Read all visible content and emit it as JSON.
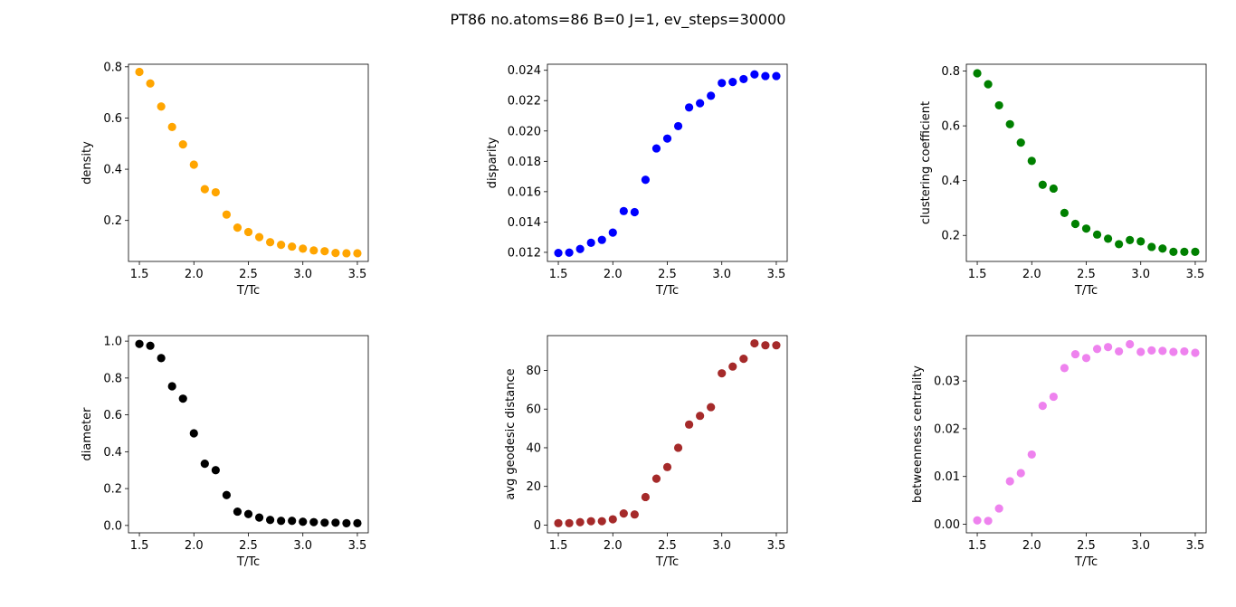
{
  "figure": {
    "title": "PT86 no.atoms=86  B=0 J=1, ev_steps=30000"
  },
  "chart_data": [
    {
      "type": "scatter",
      "xlabel": "T/Tc",
      "ylabel": "density",
      "color": "#ffa500",
      "xlim": [
        1.4,
        3.6
      ],
      "ylim": [
        0.04,
        0.81
      ],
      "xticks": [
        1.5,
        2.0,
        2.5,
        3.0,
        3.5
      ],
      "xtick_labels": [
        "1.5",
        "2.0",
        "2.5",
        "3.0",
        "3.5"
      ],
      "yticks": [
        0.2,
        0.4,
        0.6,
        0.8
      ],
      "ytick_labels": [
        "0.2",
        "0.4",
        "0.6",
        "0.8"
      ],
      "x": [
        1.5,
        1.6,
        1.7,
        1.8,
        1.9,
        2.0,
        2.1,
        2.2,
        2.3,
        2.4,
        2.5,
        2.6,
        2.7,
        2.8,
        2.9,
        3.0,
        3.1,
        3.2,
        3.3,
        3.4,
        3.5
      ],
      "y": [
        0.78,
        0.735,
        0.645,
        0.565,
        0.497,
        0.418,
        0.322,
        0.31,
        0.223,
        0.172,
        0.155,
        0.135,
        0.115,
        0.105,
        0.098,
        0.09,
        0.083,
        0.08,
        0.073,
        0.072,
        0.072
      ]
    },
    {
      "type": "scatter",
      "xlabel": "T/Tc",
      "ylabel": "disparity",
      "color": "#0000ff",
      "xlim": [
        1.4,
        3.6
      ],
      "ylim": [
        0.0114,
        0.0244
      ],
      "xticks": [
        1.5,
        2.0,
        2.5,
        3.0,
        3.5
      ],
      "xtick_labels": [
        "1.5",
        "2.0",
        "2.5",
        "3.0",
        "3.5"
      ],
      "yticks": [
        0.012,
        0.014,
        0.016,
        0.018,
        0.02,
        0.022,
        0.024
      ],
      "ytick_labels": [
        "0.012",
        "0.014",
        "0.016",
        "0.018",
        "0.020",
        "0.022",
        "0.024"
      ],
      "x": [
        1.5,
        1.6,
        1.7,
        1.8,
        1.9,
        2.0,
        2.1,
        2.2,
        2.3,
        2.4,
        2.5,
        2.6,
        2.7,
        2.8,
        2.9,
        3.0,
        3.1,
        3.2,
        3.3,
        3.4,
        3.5
      ],
      "y": [
        0.01196,
        0.01198,
        0.01222,
        0.01263,
        0.01282,
        0.0133,
        0.01472,
        0.01465,
        0.01678,
        0.01885,
        0.0195,
        0.02032,
        0.02155,
        0.02183,
        0.02232,
        0.02316,
        0.02323,
        0.02342,
        0.02373,
        0.02362,
        0.02362
      ]
    },
    {
      "type": "scatter",
      "xlabel": "T/Tc",
      "ylabel": "clustering coefficient",
      "color": "#008000",
      "xlim": [
        1.4,
        3.6
      ],
      "ylim": [
        0.105,
        0.825
      ],
      "xticks": [
        1.5,
        2.0,
        2.5,
        3.0,
        3.5
      ],
      "xtick_labels": [
        "1.5",
        "2.0",
        "2.5",
        "3.0",
        "3.5"
      ],
      "yticks": [
        0.2,
        0.4,
        0.6,
        0.8
      ],
      "ytick_labels": [
        "0.2",
        "0.4",
        "0.6",
        "0.8"
      ],
      "x": [
        1.5,
        1.6,
        1.7,
        1.8,
        1.9,
        2.0,
        2.1,
        2.2,
        2.3,
        2.4,
        2.5,
        2.6,
        2.7,
        2.8,
        2.9,
        3.0,
        3.1,
        3.2,
        3.3,
        3.4,
        3.5
      ],
      "y": [
        0.792,
        0.752,
        0.675,
        0.606,
        0.539,
        0.472,
        0.385,
        0.371,
        0.282,
        0.242,
        0.225,
        0.203,
        0.188,
        0.168,
        0.183,
        0.178,
        0.158,
        0.152,
        0.14,
        0.14,
        0.14
      ]
    },
    {
      "type": "scatter",
      "xlabel": "T/Tc",
      "ylabel": "diameter",
      "color": "#000000",
      "xlim": [
        1.4,
        3.6
      ],
      "ylim": [
        -0.04,
        1.03
      ],
      "xticks": [
        1.5,
        2.0,
        2.5,
        3.0,
        3.5
      ],
      "xtick_labels": [
        "1.5",
        "2.0",
        "2.5",
        "3.0",
        "3.5"
      ],
      "yticks": [
        0.0,
        0.2,
        0.4,
        0.6,
        0.8,
        1.0
      ],
      "ytick_labels": [
        "0.0",
        "0.2",
        "0.4",
        "0.6",
        "0.8",
        "1.0"
      ],
      "x": [
        1.5,
        1.6,
        1.7,
        1.8,
        1.9,
        2.0,
        2.1,
        2.2,
        2.3,
        2.4,
        2.5,
        2.6,
        2.7,
        2.8,
        2.9,
        3.0,
        3.1,
        3.2,
        3.3,
        3.4,
        3.5
      ],
      "y": [
        0.985,
        0.975,
        0.908,
        0.755,
        0.688,
        0.5,
        0.335,
        0.3,
        0.165,
        0.075,
        0.062,
        0.043,
        0.03,
        0.025,
        0.025,
        0.02,
        0.018,
        0.015,
        0.015,
        0.012,
        0.012
      ]
    },
    {
      "type": "scatter",
      "xlabel": "T/Tc",
      "ylabel": "avg geodesic distance",
      "color": "#a52a2a",
      "xlim": [
        1.4,
        3.6
      ],
      "ylim": [
        -4,
        98
      ],
      "xticks": [
        1.5,
        2.0,
        2.5,
        3.0,
        3.5
      ],
      "xtick_labels": [
        "1.5",
        "2.0",
        "2.5",
        "3.0",
        "3.5"
      ],
      "yticks": [
        0,
        20,
        40,
        60,
        80
      ],
      "ytick_labels": [
        "0",
        "20",
        "40",
        "60",
        "80"
      ],
      "x": [
        1.5,
        1.6,
        1.7,
        1.8,
        1.9,
        2.0,
        2.1,
        2.2,
        2.3,
        2.4,
        2.5,
        2.6,
        2.7,
        2.8,
        2.9,
        3.0,
        3.1,
        3.2,
        3.3,
        3.4,
        3.5
      ],
      "y": [
        1,
        1,
        1.5,
        2,
        2,
        3,
        6,
        5.5,
        14.5,
        24,
        30,
        40,
        52,
        56.5,
        61,
        78.5,
        82,
        86,
        94,
        93,
        93
      ]
    },
    {
      "type": "scatter",
      "xlabel": "T/Tc",
      "ylabel": "betweenness centrality",
      "color": "#ee82ee",
      "xlim": [
        1.4,
        3.6
      ],
      "ylim": [
        -0.0018,
        0.0395
      ],
      "xticks": [
        1.5,
        2.0,
        2.5,
        3.0,
        3.5
      ],
      "xtick_labels": [
        "1.5",
        "2.0",
        "2.5",
        "3.0",
        "3.5"
      ],
      "yticks": [
        0.0,
        0.01,
        0.02,
        0.03
      ],
      "ytick_labels": [
        "0.00",
        "0.01",
        "0.02",
        "0.03"
      ],
      "x": [
        1.5,
        1.6,
        1.7,
        1.8,
        1.9,
        2.0,
        2.1,
        2.2,
        2.3,
        2.4,
        2.5,
        2.6,
        2.7,
        2.8,
        2.9,
        3.0,
        3.1,
        3.2,
        3.3,
        3.4,
        3.5
      ],
      "y": [
        0.0008,
        0.0007,
        0.0033,
        0.009,
        0.0107,
        0.0146,
        0.0248,
        0.0267,
        0.0327,
        0.0356,
        0.0348,
        0.0367,
        0.0371,
        0.0362,
        0.0377,
        0.0361,
        0.0364,
        0.0363,
        0.0361,
        0.0362,
        0.0359
      ]
    }
  ]
}
